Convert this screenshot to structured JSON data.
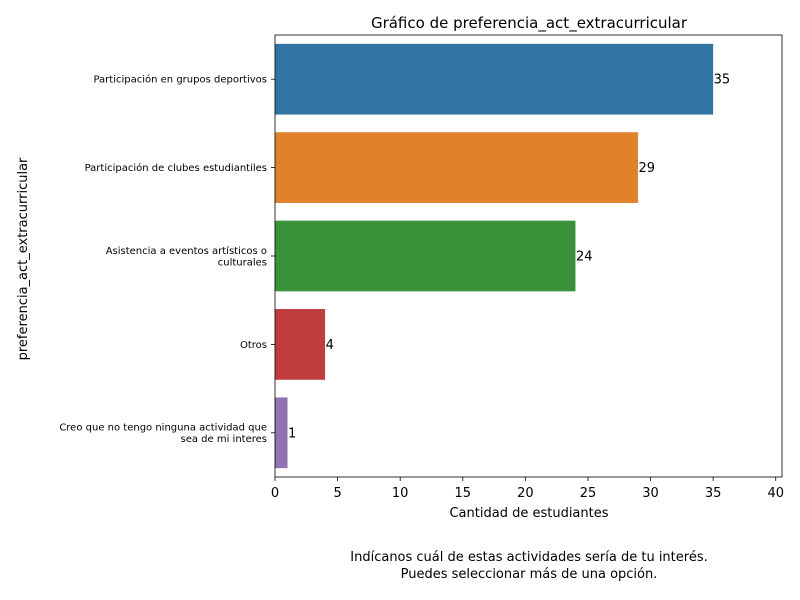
{
  "chart_data": {
    "type": "bar",
    "orientation": "horizontal",
    "title": "Gráfico de preferencia_act_extracurricular",
    "xlabel": "Cantidad de estudiantes",
    "ylabel": "preferencia_act_extracurricular",
    "xlim": [
      0,
      40.5
    ],
    "xticks": [
      "0",
      "5",
      "10",
      "15",
      "20",
      "25",
      "30",
      "35",
      "40"
    ],
    "categories": [
      [
        "Participación en grupos deportivos"
      ],
      [
        "Participación de clubes estudiantiles"
      ],
      [
        "Asistencia a eventos artísticos o",
        "culturales"
      ],
      [
        "Otros"
      ],
      [
        "Creo que no tengo ninguna actividad que",
        "sea de mi interes"
      ]
    ],
    "values": [
      35,
      29,
      24,
      4,
      1
    ],
    "value_labels": [
      "35",
      "29",
      "24",
      "4",
      "1"
    ],
    "colors": [
      "#3274a1",
      "#e1812c",
      "#3a923a",
      "#c03d3e",
      "#9372b2"
    ],
    "grid": false,
    "legend": "none"
  },
  "caption": {
    "line1": "Indícanos cuál de estas actividades sería de tu interés.",
    "line2": "Puedes seleccionar más de una opción."
  }
}
